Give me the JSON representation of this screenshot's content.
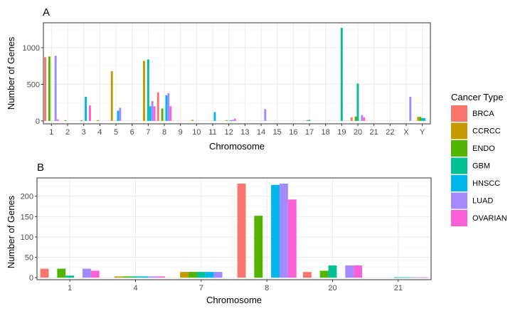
{
  "legend": {
    "title": "Cancer Type",
    "items": [
      {
        "label": "BRCA",
        "color": "#F8766D"
      },
      {
        "label": "CCRCC",
        "color": "#C49A00"
      },
      {
        "label": "ENDO",
        "color": "#53B400"
      },
      {
        "label": "GBM",
        "color": "#00C094"
      },
      {
        "label": "HNSCC",
        "color": "#00B6EB"
      },
      {
        "label": "LUAD",
        "color": "#A58AFF"
      },
      {
        "label": "OVARIAN",
        "color": "#FB61D7"
      }
    ]
  },
  "chart_data": [
    {
      "panel": "A",
      "type": "bar",
      "xlabel": "Chromosome",
      "ylabel": "Number of Genes",
      "ylim": [
        -40,
        1340
      ],
      "yticks": [
        0,
        500,
        1000
      ],
      "categories": [
        "1",
        "2",
        "3",
        "4",
        "5",
        "6",
        "7",
        "8",
        "9",
        "10",
        "11",
        "12",
        "13",
        "14",
        "15",
        "16",
        "17",
        "18",
        "19",
        "20",
        "21",
        "22",
        "X",
        "Y"
      ],
      "series": [
        {
          "name": "BRCA",
          "values": [
            870,
            0,
            0,
            0,
            0,
            0,
            0,
            390,
            0,
            0,
            0,
            0,
            0,
            0,
            0,
            0,
            0,
            0,
            0,
            50,
            0,
            0,
            0,
            0
          ]
        },
        {
          "name": "CCRCC",
          "values": [
            0,
            0,
            0,
            0,
            680,
            0,
            820,
            0,
            0,
            15,
            0,
            0,
            0,
            0,
            0,
            0,
            0,
            0,
            0,
            0,
            0,
            0,
            0,
            55
          ]
        },
        {
          "name": "ENDO",
          "values": [
            880,
            10,
            10,
            10,
            0,
            0,
            0,
            170,
            0,
            0,
            0,
            10,
            0,
            0,
            0,
            0,
            10,
            0,
            0,
            60,
            0,
            0,
            0,
            55
          ]
        },
        {
          "name": "GBM",
          "values": [
            0,
            0,
            0,
            0,
            0,
            0,
            840,
            0,
            0,
            0,
            0,
            0,
            0,
            0,
            0,
            0,
            15,
            0,
            1270,
            510,
            0,
            0,
            0,
            40
          ]
        },
        {
          "name": "HNSCC",
          "values": [
            0,
            0,
            330,
            0,
            140,
            0,
            200,
            350,
            0,
            0,
            120,
            10,
            0,
            0,
            0,
            0,
            0,
            0,
            0,
            0,
            0,
            0,
            0,
            40
          ]
        },
        {
          "name": "LUAD",
          "values": [
            890,
            0,
            0,
            0,
            180,
            0,
            270,
            380,
            0,
            0,
            0,
            15,
            0,
            160,
            0,
            0,
            0,
            0,
            0,
            80,
            0,
            0,
            330,
            0
          ]
        },
        {
          "name": "OVARIAN",
          "values": [
            20,
            0,
            210,
            0,
            0,
            0,
            200,
            200,
            0,
            0,
            0,
            30,
            0,
            0,
            0,
            0,
            0,
            0,
            0,
            50,
            0,
            0,
            0,
            0
          ]
        }
      ]
    },
    {
      "panel": "B",
      "type": "bar",
      "xlabel": "Chromosome",
      "ylabel": "Number of Genes",
      "ylim": [
        -5,
        245
      ],
      "yticks": [
        0,
        50,
        100,
        150,
        200
      ],
      "categories": [
        "1",
        "4",
        "7",
        "8",
        "20",
        "21"
      ],
      "series": [
        {
          "name": "BRCA",
          "values": [
            22,
            0,
            0,
            231,
            14,
            0
          ]
        },
        {
          "name": "CCRCC",
          "values": [
            0,
            3,
            14,
            0,
            0,
            0
          ]
        },
        {
          "name": "ENDO",
          "values": [
            22,
            3,
            14,
            152,
            17,
            0
          ]
        },
        {
          "name": "GBM",
          "values": [
            5,
            3,
            14,
            0,
            30,
            1
          ]
        },
        {
          "name": "HNSCC",
          "values": [
            0,
            3,
            14,
            228,
            0,
            1
          ]
        },
        {
          "name": "LUAD",
          "values": [
            22,
            3,
            14,
            231,
            30,
            1
          ]
        },
        {
          "name": "OVARIAN",
          "values": [
            17,
            3,
            0,
            192,
            30,
            1
          ]
        }
      ]
    }
  ]
}
